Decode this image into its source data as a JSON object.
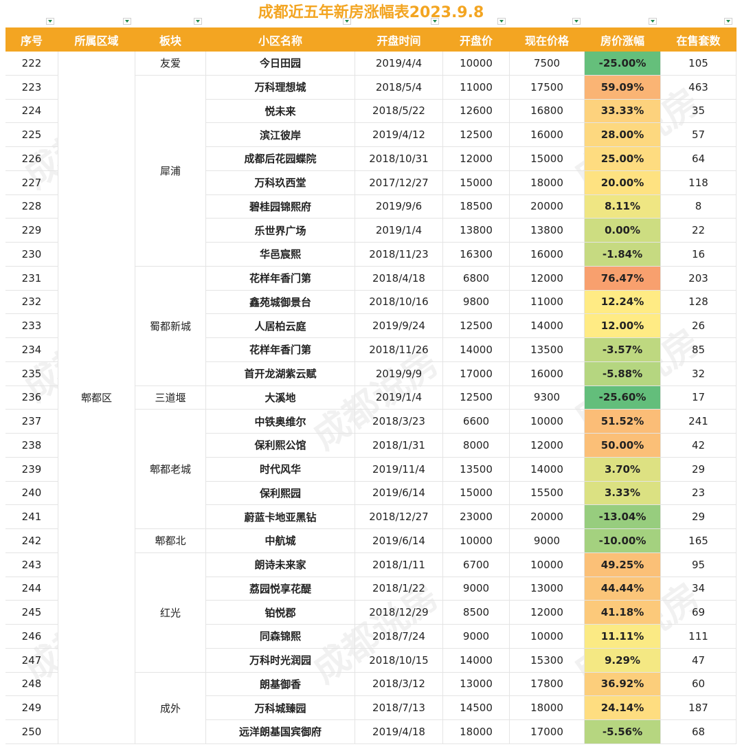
{
  "title": "成都近五年新房涨幅表2023.9.8",
  "watermark": "成都说房",
  "headers": [
    "序号",
    "所属区域",
    "板块",
    "小区名称",
    "开盘时间",
    "开盘价",
    "现在价格",
    "房价涨幅",
    "在售套数"
  ],
  "district": "郫都区",
  "sectors": [
    {
      "name": "友爱",
      "rows": [
        [
          "222",
          "今日田园",
          "2019/4/4",
          "10000",
          "7500",
          "-25.00%",
          "105"
        ]
      ]
    },
    {
      "name": "犀浦",
      "rows": [
        [
          "223",
          "万科理想城",
          "2018/5/4",
          "11000",
          "17500",
          "59.09%",
          "463"
        ],
        [
          "224",
          "悦未来",
          "2018/5/22",
          "12600",
          "16800",
          "33.33%",
          "35"
        ],
        [
          "225",
          "滨江彼岸",
          "2019/4/12",
          "12500",
          "16000",
          "28.00%",
          "57"
        ],
        [
          "226",
          "成都后花园蝶院",
          "2018/10/31",
          "12000",
          "15000",
          "25.00%",
          "64"
        ],
        [
          "227",
          "万科玖西堂",
          "2017/12/27",
          "15000",
          "18000",
          "20.00%",
          "118"
        ],
        [
          "228",
          "碧桂园锦熙府",
          "2019/9/6",
          "18500",
          "20000",
          "8.11%",
          "8"
        ],
        [
          "229",
          "乐世界广场",
          "2019/1/4",
          "13800",
          "13800",
          "0.00%",
          "22"
        ],
        [
          "230",
          "华邑宸熙",
          "2018/11/23",
          "16300",
          "16000",
          "-1.84%",
          "16"
        ]
      ]
    },
    {
      "name": "蜀都新城",
      "rows": [
        [
          "231",
          "花样年香门第",
          "2018/4/18",
          "6800",
          "12000",
          "76.47%",
          "203"
        ],
        [
          "232",
          "鑫苑城御景台",
          "2018/10/16",
          "9800",
          "11000",
          "12.24%",
          "128"
        ],
        [
          "233",
          "人居柏云庭",
          "2019/9/24",
          "12500",
          "14000",
          "12.00%",
          "26"
        ],
        [
          "234",
          "花样年香门第",
          "2018/11/26",
          "14000",
          "13500",
          "-3.57%",
          "85"
        ],
        [
          "235",
          "首开龙湖紫云赋",
          "2019/9/9",
          "17000",
          "16000",
          "-5.88%",
          "32"
        ]
      ]
    },
    {
      "name": "三道堰",
      "rows": [
        [
          "236",
          "大溪地",
          "2019/1/4",
          "12500",
          "9300",
          "-25.60%",
          "17"
        ]
      ]
    },
    {
      "name": "郫都老城",
      "rows": [
        [
          "237",
          "中铁奥维尔",
          "2018/3/23",
          "6600",
          "10000",
          "51.52%",
          "241"
        ],
        [
          "238",
          "保利熙公馆",
          "2018/1/31",
          "8000",
          "12000",
          "50.00%",
          "42"
        ],
        [
          "239",
          "时代风华",
          "2019/11/4",
          "13500",
          "14000",
          "3.70%",
          "29"
        ],
        [
          "240",
          "保利熙园",
          "2019/6/14",
          "15000",
          "15500",
          "3.33%",
          "23"
        ],
        [
          "241",
          "蔚蓝卡地亚黑钻",
          "2018/12/27",
          "23000",
          "20000",
          "-13.04%",
          "29"
        ]
      ]
    },
    {
      "name": "郫都北",
      "rows": [
        [
          "242",
          "中航城",
          "2019/6/14",
          "10000",
          "9000",
          "-10.00%",
          "165"
        ]
      ]
    },
    {
      "name": "红光",
      "rows": [
        [
          "243",
          "朗诗未来家",
          "2018/1/11",
          "6700",
          "10000",
          "49.25%",
          "95"
        ],
        [
          "244",
          "荔园悦享花醍",
          "2018/1/22",
          "9000",
          "13000",
          "44.44%",
          "34"
        ],
        [
          "245",
          "铂悦郡",
          "2018/12/29",
          "8500",
          "12000",
          "41.18%",
          "69"
        ],
        [
          "246",
          "同森锦熙",
          "2018/7/24",
          "9000",
          "10000",
          "11.11%",
          "111"
        ],
        [
          "247",
          "万科时光润园",
          "2018/10/15",
          "14000",
          "15300",
          "9.29%",
          "47"
        ]
      ]
    },
    {
      "name": "成外",
      "rows": [
        [
          "248",
          "朗基御香",
          "2018/3/12",
          "13000",
          "17800",
          "36.92%",
          "60"
        ],
        [
          "249",
          "万科城臻园",
          "2018/7/13",
          "14500",
          "18000",
          "24.14%",
          "187"
        ],
        [
          "250",
          "远洋朗基国宾御府",
          "2019/4/18",
          "18000",
          "17000",
          "-5.56%",
          "68"
        ]
      ]
    }
  ]
}
